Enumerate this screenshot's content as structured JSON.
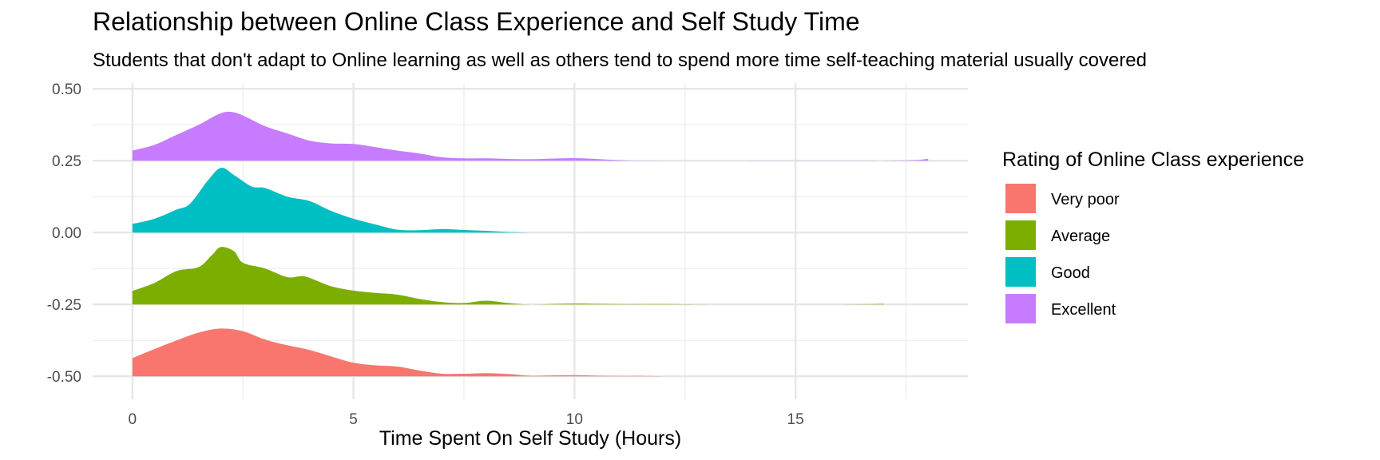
{
  "chart_data": {
    "type": "area",
    "title": "Relationship between Online Class Experience and Self Study Time",
    "subtitle": "Students that don't adapt to Online learning as well as others tend to spend more time self-teaching material usually covered",
    "xlabel": "Time Spent On Self Study (Hours)",
    "ylabel": "",
    "xlim": [
      -0.9,
      18.9
    ],
    "ylim": [
      -0.58,
      0.52
    ],
    "x_ticks": [
      0,
      5,
      10,
      15
    ],
    "x_tick_labels": [
      "0",
      "5",
      "10",
      "15"
    ],
    "y_ticks": [
      -0.5,
      -0.25,
      0.0,
      0.25,
      0.5
    ],
    "y_tick_labels": [
      "-0.50",
      "-0.25",
      "0.00",
      "0.25",
      "0.50"
    ],
    "grid": true,
    "legend": {
      "title": "Rating of Online Class experience",
      "position": "right"
    },
    "series": [
      {
        "name": "Very poor",
        "color": "#F8766D",
        "baseline": -0.5,
        "points": [
          [
            0,
            0.063
          ],
          [
            0.5,
            0.095
          ],
          [
            1,
            0.125
          ],
          [
            1.5,
            0.152
          ],
          [
            2,
            0.166
          ],
          [
            2.5,
            0.157
          ],
          [
            3,
            0.128
          ],
          [
            3.5,
            0.108
          ],
          [
            4,
            0.092
          ],
          [
            4.5,
            0.069
          ],
          [
            5,
            0.047
          ],
          [
            5.5,
            0.038
          ],
          [
            6,
            0.034
          ],
          [
            6.5,
            0.02
          ],
          [
            7,
            0.009
          ],
          [
            7.5,
            0.009
          ],
          [
            8,
            0.011
          ],
          [
            8.5,
            0.008
          ],
          [
            9,
            0.002
          ],
          [
            9.5,
            0.003
          ],
          [
            10,
            0.004
          ],
          [
            10.5,
            0.002
          ],
          [
            11,
            0.001
          ],
          [
            11.5,
            0.001
          ],
          [
            12,
            0.0
          ]
        ]
      },
      {
        "name": "Average",
        "color": "#7CAE00",
        "baseline": -0.25,
        "points": [
          [
            0,
            0.047
          ],
          [
            0.5,
            0.075
          ],
          [
            1,
            0.116
          ],
          [
            1.5,
            0.13
          ],
          [
            1.8,
            0.172
          ],
          [
            2,
            0.2
          ],
          [
            2.3,
            0.185
          ],
          [
            2.5,
            0.145
          ],
          [
            3,
            0.125
          ],
          [
            3.5,
            0.095
          ],
          [
            3.8,
            0.098
          ],
          [
            4,
            0.093
          ],
          [
            4.5,
            0.063
          ],
          [
            5,
            0.048
          ],
          [
            5.5,
            0.04
          ],
          [
            6,
            0.034
          ],
          [
            6.5,
            0.019
          ],
          [
            7,
            0.008
          ],
          [
            7.5,
            0.005
          ],
          [
            8,
            0.013
          ],
          [
            8.5,
            0.005
          ],
          [
            9,
            0.0
          ],
          [
            10,
            0.003
          ],
          [
            11,
            0.001
          ],
          [
            12,
            0.001
          ],
          [
            13,
            0.0
          ],
          [
            16,
            0.0
          ],
          [
            17,
            0.002
          ]
        ]
      },
      {
        "name": "Good",
        "color": "#00BFC4",
        "baseline": 0.0,
        "points": [
          [
            0,
            0.03
          ],
          [
            0.5,
            0.048
          ],
          [
            1,
            0.08
          ],
          [
            1.3,
            0.1
          ],
          [
            1.7,
            0.18
          ],
          [
            2,
            0.225
          ],
          [
            2.3,
            0.2
          ],
          [
            2.7,
            0.16
          ],
          [
            3,
            0.155
          ],
          [
            3.5,
            0.125
          ],
          [
            4,
            0.11
          ],
          [
            4.5,
            0.075
          ],
          [
            5,
            0.048
          ],
          [
            5.5,
            0.028
          ],
          [
            6,
            0.01
          ],
          [
            6.5,
            0.008
          ],
          [
            7,
            0.012
          ],
          [
            7.5,
            0.009
          ],
          [
            8,
            0.006
          ],
          [
            8.5,
            0.002
          ],
          [
            9,
            0.0
          ],
          [
            9.5,
            0.0
          ],
          [
            10,
            0.0
          ]
        ]
      },
      {
        "name": "Excellent",
        "color": "#C77CFF",
        "baseline": 0.25,
        "points": [
          [
            0,
            0.035
          ],
          [
            0.5,
            0.055
          ],
          [
            1,
            0.09
          ],
          [
            1.5,
            0.125
          ],
          [
            2,
            0.165
          ],
          [
            2.3,
            0.168
          ],
          [
            2.6,
            0.15
          ],
          [
            3,
            0.12
          ],
          [
            3.5,
            0.095
          ],
          [
            4,
            0.07
          ],
          [
            4.5,
            0.06
          ],
          [
            5,
            0.058
          ],
          [
            5.5,
            0.047
          ],
          [
            6,
            0.035
          ],
          [
            6.5,
            0.025
          ],
          [
            7,
            0.012
          ],
          [
            7.5,
            0.008
          ],
          [
            8,
            0.008
          ],
          [
            9,
            0.005
          ],
          [
            10,
            0.009
          ],
          [
            11,
            0.002
          ],
          [
            12,
            0.0
          ],
          [
            17,
            0.0
          ],
          [
            18,
            0.006
          ]
        ]
      }
    ]
  }
}
